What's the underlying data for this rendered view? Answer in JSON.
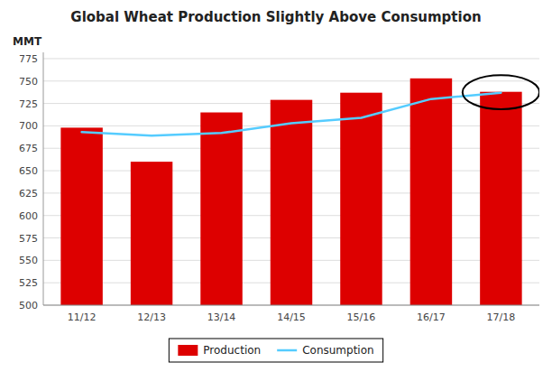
{
  "chart_data": {
    "type": "bar",
    "title": "Global Wheat Production Slightly Above Consumption",
    "y_label": "MMT",
    "categories": [
      "11/12",
      "12/13",
      "13/14",
      "14/15",
      "15/16",
      "16/17",
      "17/18"
    ],
    "series": [
      {
        "name": "Production",
        "type": "bar",
        "color": "#dd0000",
        "values": [
          698,
          660,
          715,
          729,
          737,
          753,
          738
        ]
      },
      {
        "name": "Consumption",
        "type": "line",
        "color": "#55ccff",
        "values": [
          693,
          689,
          692,
          703,
          709,
          730,
          737
        ]
      }
    ],
    "ylim": [
      500,
      782
    ],
    "yticks": [
      500,
      525,
      550,
      575,
      600,
      625,
      650,
      675,
      700,
      725,
      750,
      775
    ],
    "grid": true,
    "legend": "bottom",
    "highlight": {
      "category": "17/18",
      "y": 737.5,
      "width": 1.1,
      "height": 38
    }
  }
}
